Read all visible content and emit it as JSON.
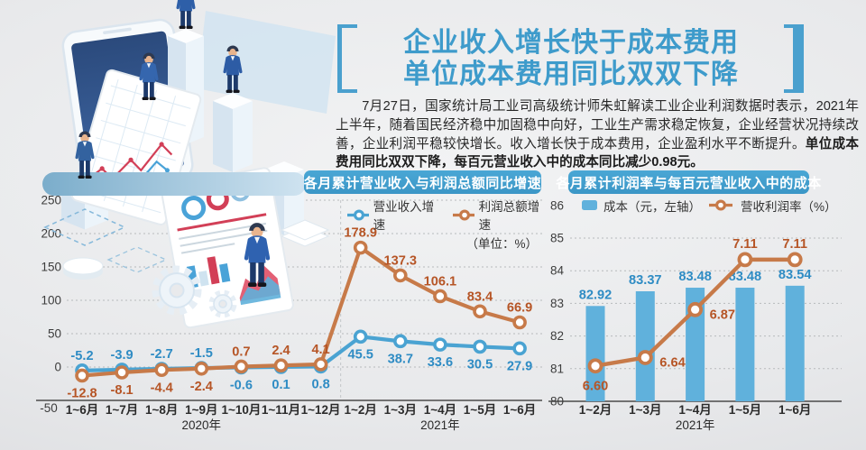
{
  "header": {
    "title_line1": "企业收入增长快于成本费用",
    "title_line2": "单位成本费用同比双双下降",
    "accent_color": "#3e9bcb",
    "paragraph_normal": "7月27日，国家统计局工业司高级统计师朱虹解读工业企业利润数据时表示，2021年上半年，随着国民经济稳中加固稳中向好，工业生产需求稳定恢复，企业经营状况持续改善，企业利润平稳较快增长。收入增长快于成本费用，企业盈利水平不断提升。",
    "paragraph_bold": "单位成本费用同比双双下降，每百元营业收入中的成本同比减少0.98元。"
  },
  "left_panel": {
    "banner": "各月累计营业收入与利润总额同比增速",
    "unit_note": "（单位：%）",
    "legend": [
      {
        "label": "营业收入增速",
        "color": "#4aa3d2"
      },
      {
        "label": "利润总额增速",
        "color": "#c77a49"
      }
    ]
  },
  "right_panel": {
    "banner": "各月累计利润率与每百元营业收入中的成本",
    "legend_bar": "成本（元，左轴）",
    "legend_line": "营收利润率（%）",
    "bar_color": "#60b1dc",
    "line_color": "#c77a49"
  },
  "chart_data": [
    {
      "type": "line",
      "title": "各月累计营业收入与利润总额同比增速",
      "unit": "（单位：%）",
      "categories": [
        "1~6月",
        "1~7月",
        "1~8月",
        "1~9月",
        "1~10月",
        "1~11月",
        "1~12月",
        "1~2月",
        "1~3月",
        "1~4月",
        "1~5月",
        "1~6月"
      ],
      "year_labels": [
        {
          "text": "2020年",
          "at_index": 3
        },
        {
          "text": "2021年",
          "at_index": 9
        }
      ],
      "year_split_after_index": 6,
      "yticks": [
        "250",
        "200",
        "150",
        "100",
        "50",
        "0",
        "-50"
      ],
      "ylim": [
        -50,
        250
      ],
      "grid": "dotted",
      "legend_position": "top-right",
      "series": [
        {
          "name": "营业收入增速",
          "color": "#4aa3d2",
          "label_color": "#2f8cc4",
          "values": [
            -5.2,
            -3.9,
            -2.7,
            -1.5,
            -0.6,
            0.1,
            0.8,
            45.5,
            38.7,
            33.6,
            30.5,
            27.9
          ],
          "labels": [
            "-5.2",
            "-3.9",
            "-2.7",
            "-1.5",
            "-0.6",
            "0.1",
            "0.8",
            "45.5",
            "38.7",
            "33.6",
            "30.5",
            "27.9"
          ],
          "label_sides": [
            "above",
            "above",
            "above",
            "above",
            "below",
            "below",
            "below",
            "below",
            "below",
            "below",
            "below",
            "below"
          ]
        },
        {
          "name": "利润总额增速",
          "color": "#c77a49",
          "label_color": "#b65526",
          "values": [
            -12.8,
            -8.1,
            -4.4,
            -2.4,
            0.7,
            2.4,
            4.1,
            178.9,
            137.3,
            106.1,
            83.4,
            66.9
          ],
          "labels": [
            "-12.8",
            "-8.1",
            "-4.4",
            "-2.4",
            "0.7",
            "2.4",
            "4.1",
            "178.9",
            "137.3",
            "106.1",
            "83.4",
            "66.9"
          ],
          "label_sides": [
            "below",
            "below",
            "below",
            "below",
            "above",
            "above",
            "above",
            "above",
            "above",
            "above",
            "above",
            "above"
          ]
        }
      ]
    },
    {
      "type": "bar+line",
      "title": "各月累计利润率与每百元营业收入中的成本",
      "categories": [
        "1~2月",
        "1~3月",
        "1~4月",
        "1~5月",
        "1~6月"
      ],
      "year_labels": [
        {
          "text": "2021年",
          "at_index": 2
        }
      ],
      "yticks": [
        "86",
        "85",
        "84",
        "83",
        "82",
        "81",
        "80"
      ],
      "ylim": [
        80,
        86
      ],
      "grid": "dotted",
      "bar_series": {
        "name": "成本（元，左轴）",
        "color": "#60b1dc",
        "label_color": "#2f8cc4",
        "values": [
          82.92,
          83.37,
          83.48,
          83.48,
          83.54
        ],
        "labels": [
          "82.92",
          "83.37",
          "83.48",
          "83.48",
          "83.54"
        ]
      },
      "line_series": {
        "name": "营收利润率（%）",
        "color": "#c77a49",
        "label_color": "#b65526",
        "values": [
          6.6,
          6.64,
          6.87,
          7.11,
          7.11
        ],
        "labels": [
          "6.60",
          "6.64",
          "6.87",
          "7.11",
          "7.11"
        ],
        "label_sides": [
          "below",
          "right",
          "right",
          "above",
          "above"
        ],
        "axis_hidden_range": [
          6.43,
          7.37
        ]
      }
    }
  ]
}
